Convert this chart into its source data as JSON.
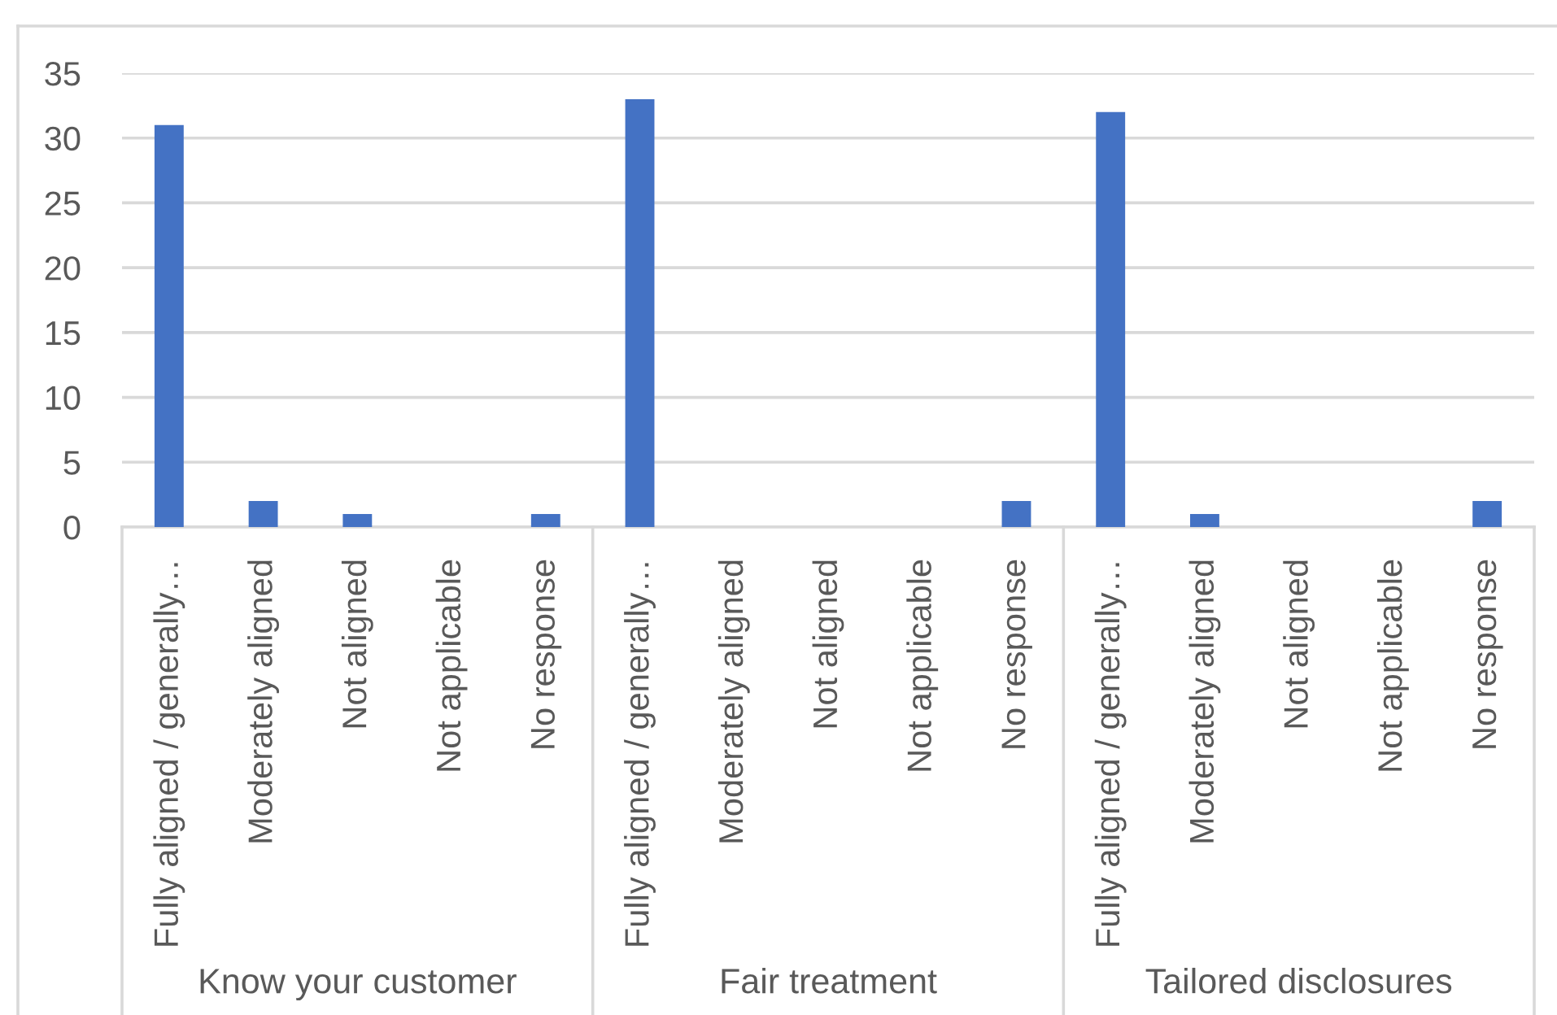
{
  "chart_data": {
    "type": "bar",
    "categories": [
      "Fully aligned / generally…",
      "Moderately aligned",
      "Not aligned",
      "Not applicable",
      "No response",
      "Fully aligned / generally…",
      "Moderately aligned",
      "Not aligned",
      "Not applicable",
      "No response",
      "Fully aligned / generally…",
      "Moderately aligned",
      "Not aligned",
      "Not applicable",
      "No response"
    ],
    "values": [
      31,
      2,
      1,
      0,
      1,
      33,
      0,
      0,
      0,
      2,
      32,
      1,
      0,
      0,
      2
    ],
    "color": "#4472c4",
    "ylim": [
      0,
      35
    ],
    "yticks": [
      0,
      5,
      10,
      15,
      20,
      25,
      30,
      35
    ],
    "grid": "y",
    "legend": false,
    "annotations": [
      "Know your customer",
      "Fair treatment",
      "Tailored disclosures"
    ]
  }
}
